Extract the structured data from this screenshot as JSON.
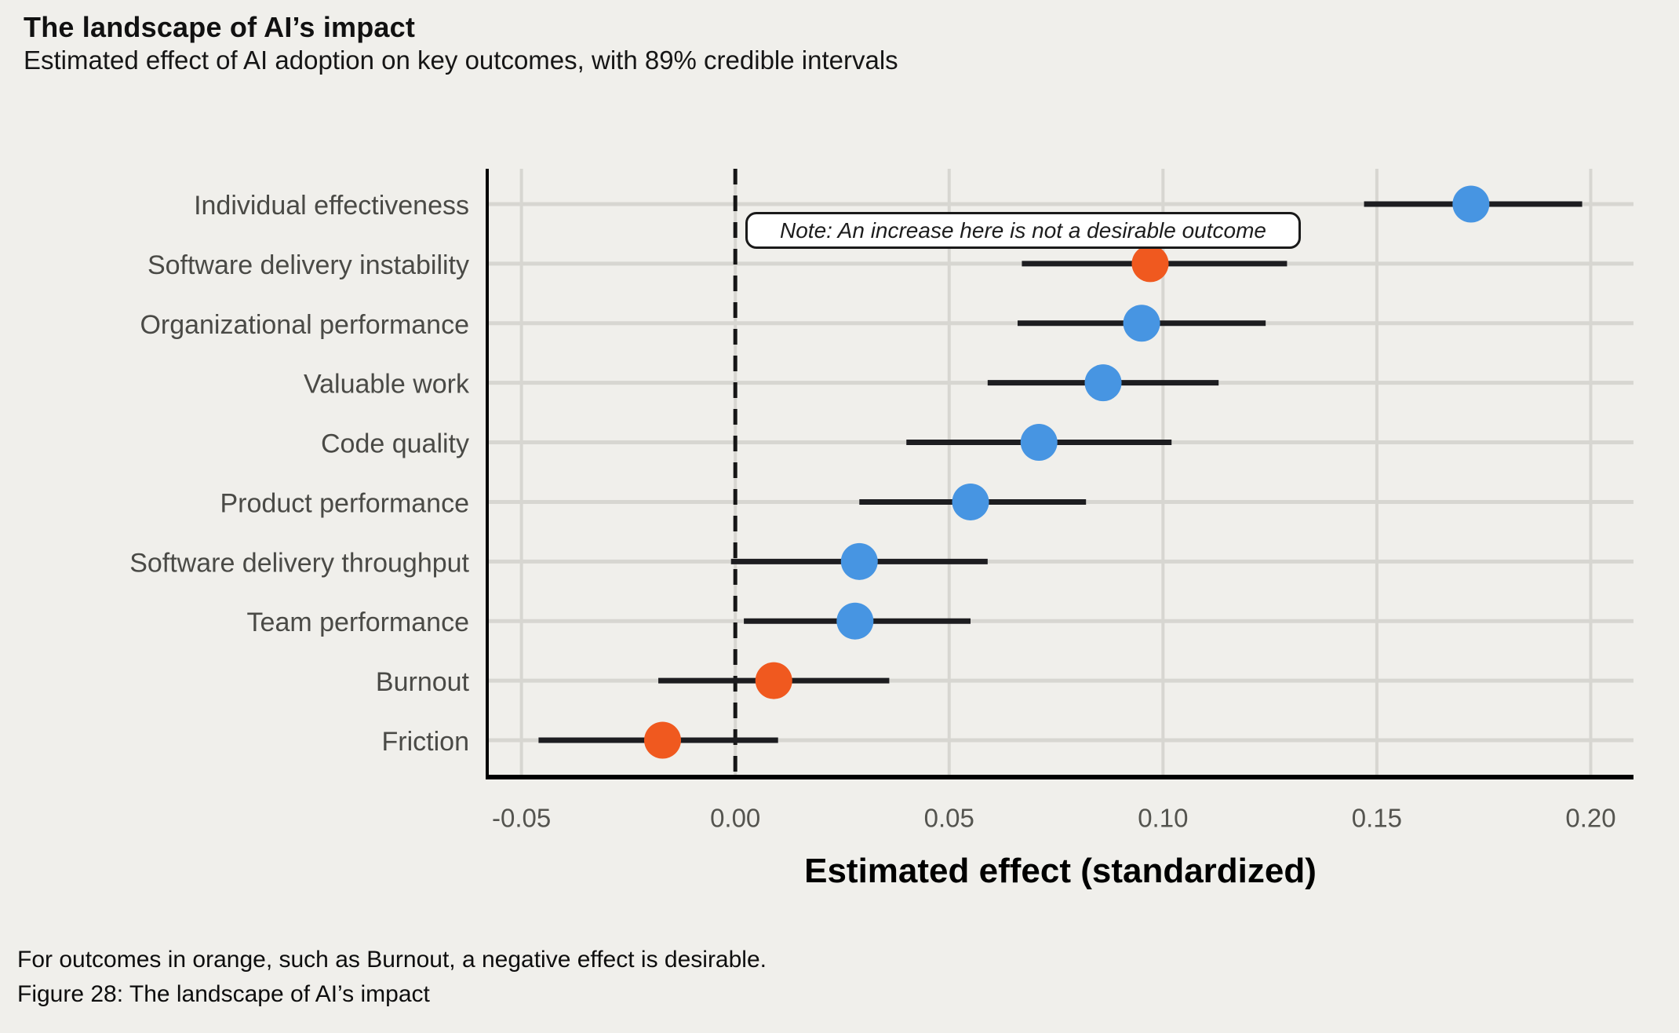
{
  "header": {
    "title": "The landscape of AI’s impact",
    "subtitle": "Estimated effect of AI adoption on key outcomes, with 89% credible intervals"
  },
  "footer": {
    "line1": "For outcomes in orange, such as Burnout, a negative effect is desirable.",
    "line2": "Figure 28: The landscape of AI’s impact"
  },
  "colors": {
    "background": "#f0efeb",
    "desirable_blue": "#4795e2",
    "undesirable_orange": "#f0591f",
    "interval_line": "#1d1d20",
    "grid_line": "#d7d6d1",
    "zero_line": "#161616",
    "axis_line": "#000000",
    "category_label": "#4a4a46",
    "tick_label": "#54544f"
  },
  "chart_data": {
    "type": "scatter",
    "variant": "dot-with-interval (forest plot), horizontal",
    "title": "The landscape of AI’s impact",
    "subtitle": "Estimated effect of AI adoption on key outcomes, with 89% credible intervals",
    "xlabel": "Estimated effect (standardized)",
    "ylabel": "",
    "xlim": [
      -0.058,
      0.21
    ],
    "x_ticks": [
      -0.05,
      0.0,
      0.05,
      0.1,
      0.15,
      0.2
    ],
    "x_tick_labels": [
      "-0.05",
      "0.00",
      "0.05",
      "0.10",
      "0.15",
      "0.20"
    ],
    "grid": true,
    "zero_line_style": "dashed vertical line at 0.00",
    "interval": "89% credible interval",
    "points": [
      {
        "label": "Individual effectiveness",
        "estimate": 0.172,
        "ci_low": 0.147,
        "ci_high": 0.198,
        "color_key": "desirable_blue"
      },
      {
        "label": "Software delivery instability",
        "estimate": 0.097,
        "ci_low": 0.067,
        "ci_high": 0.129,
        "color_key": "undesirable_orange"
      },
      {
        "label": "Organizational performance",
        "estimate": 0.095,
        "ci_low": 0.066,
        "ci_high": 0.124,
        "color_key": "desirable_blue"
      },
      {
        "label": "Valuable work",
        "estimate": 0.086,
        "ci_low": 0.059,
        "ci_high": 0.113,
        "color_key": "desirable_blue"
      },
      {
        "label": "Code quality",
        "estimate": 0.071,
        "ci_low": 0.04,
        "ci_high": 0.102,
        "color_key": "desirable_blue"
      },
      {
        "label": "Product performance",
        "estimate": 0.055,
        "ci_low": 0.029,
        "ci_high": 0.082,
        "color_key": "desirable_blue"
      },
      {
        "label": "Software delivery throughput",
        "estimate": 0.029,
        "ci_low": -0.001,
        "ci_high": 0.059,
        "color_key": "desirable_blue"
      },
      {
        "label": "Team performance",
        "estimate": 0.028,
        "ci_low": 0.002,
        "ci_high": 0.055,
        "color_key": "desirable_blue"
      },
      {
        "label": "Burnout",
        "estimate": 0.009,
        "ci_low": -0.018,
        "ci_high": 0.036,
        "color_key": "undesirable_orange"
      },
      {
        "label": "Friction",
        "estimate": -0.017,
        "ci_low": -0.046,
        "ci_high": 0.01,
        "color_key": "undesirable_orange"
      }
    ],
    "annotation": {
      "text": "Note: An increase here is not a desirable outcome"
    }
  }
}
